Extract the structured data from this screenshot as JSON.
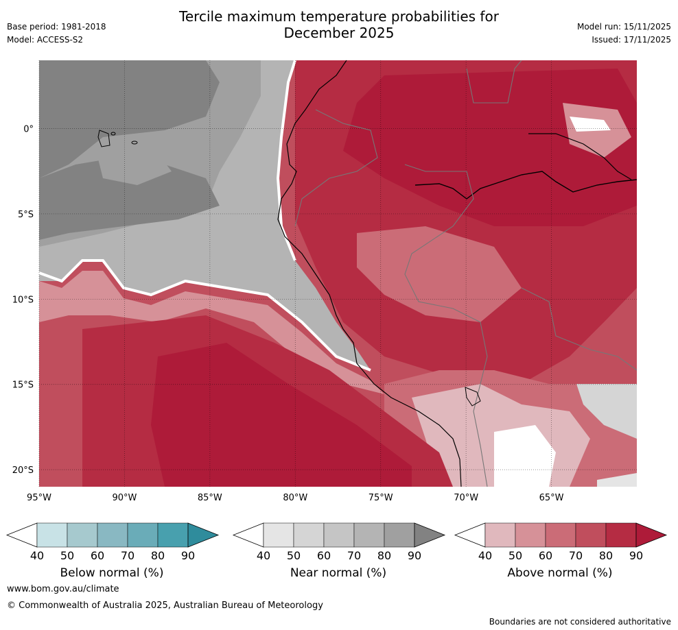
{
  "header": {
    "title_line1": "Tercile maximum temperature probabilities for",
    "title_line2": "December 2025",
    "base_period": "Base period: 1981-2018",
    "model": "Model: ACCESS-S2",
    "model_run": "Model run: 15/11/2025",
    "issued": "Issued: 17/11/2025"
  },
  "map": {
    "lat_labels": [
      "0°",
      "5°S",
      "10°S",
      "15°S",
      "20°S"
    ],
    "lon_labels": [
      "95°W",
      "90°W",
      "85°W",
      "80°W",
      "75°W",
      "70°W",
      "65°W"
    ],
    "lat_values": [
      0,
      -5,
      -10,
      -15,
      -20
    ],
    "lon_values": [
      -95,
      -90,
      -85,
      -80,
      -75,
      -70,
      -65
    ],
    "lat_range": [
      -21,
      4
    ],
    "lon_range": [
      -95,
      -60
    ]
  },
  "colorbars": [
    {
      "label": "Below normal (%)",
      "ticks": [
        "40",
        "50",
        "60",
        "70",
        "80",
        "90"
      ],
      "colors": [
        "#ffffff",
        "#c8e2e6",
        "#a6c9ce",
        "#89b8c2",
        "#6aacb8",
        "#48a0ae",
        "#2f8c9c"
      ]
    },
    {
      "label": "Near normal (%)",
      "ticks": [
        "40",
        "50",
        "60",
        "70",
        "80",
        "90"
      ],
      "colors": [
        "#ffffff",
        "#e5e5e5",
        "#d5d5d5",
        "#c5c5c5",
        "#b4b4b4",
        "#a0a0a0",
        "#828282"
      ]
    },
    {
      "label": "Above normal (%)",
      "ticks": [
        "40",
        "50",
        "60",
        "70",
        "80",
        "90"
      ],
      "colors": [
        "#ffffff",
        "#e0b8bd",
        "#d69198",
        "#cb6c77",
        "#c04e5d",
        "#b52c43",
        "#ae1b39"
      ]
    }
  ],
  "footer": {
    "url": "www.bom.gov.au/climate",
    "copyright": "© Commonwealth of Australia 2025, Australian Bureau of Meteorology",
    "disclaimer": "Boundaries are not considered authoritative"
  }
}
